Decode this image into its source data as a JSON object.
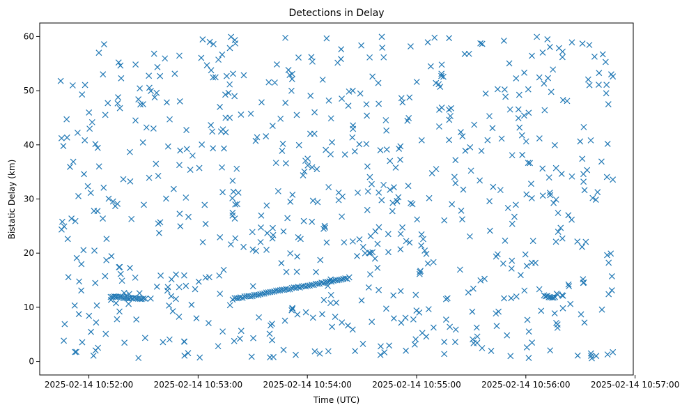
{
  "chart_data": {
    "type": "scatter",
    "title": "Detections in Delay",
    "xlabel": "Time (UTC)",
    "ylabel": "Bistatic Delay (km)",
    "x_ticks": [
      "2025-02-14 10:52:00",
      "2025-02-14 10:53:00",
      "2025-02-14 10:54:00",
      "2025-02-14 10:55:00",
      "2025-02-14 10:56:00",
      "2025-02-14 10:57:00"
    ],
    "y_ticks": [
      0,
      10,
      20,
      30,
      40,
      50,
      60
    ],
    "xlim": [
      "2025-02-14 10:51:33",
      "2025-02-14 10:56:59"
    ],
    "ylim": [
      -2.5,
      62.5
    ],
    "grid": false,
    "marker": "x",
    "color": "#1f77b4",
    "clutter_seed": 20250214,
    "clutter_count": 700,
    "clutter_time_range": [
      "2025-02-14 10:51:44",
      "2025-02-14 10:56:48"
    ],
    "clutter_delay_range": [
      0.5,
      60
    ],
    "tracks": [
      {
        "time_range": [
          "2025-02-14 10:52:12",
          "2025-02-14 10:52:31"
        ],
        "delay_range": [
          12.0,
          11.5
        ],
        "count": 20
      },
      {
        "time_range": [
          "2025-02-14 10:53:19",
          "2025-02-14 10:54:23"
        ],
        "delay_range": [
          11.5,
          15.4
        ],
        "count": 60
      },
      {
        "time_range": [
          "2025-02-14 10:56:10",
          "2025-02-14 10:56:16"
        ],
        "delay_range": [
          12.1,
          11.8
        ],
        "count": 8
      }
    ]
  }
}
